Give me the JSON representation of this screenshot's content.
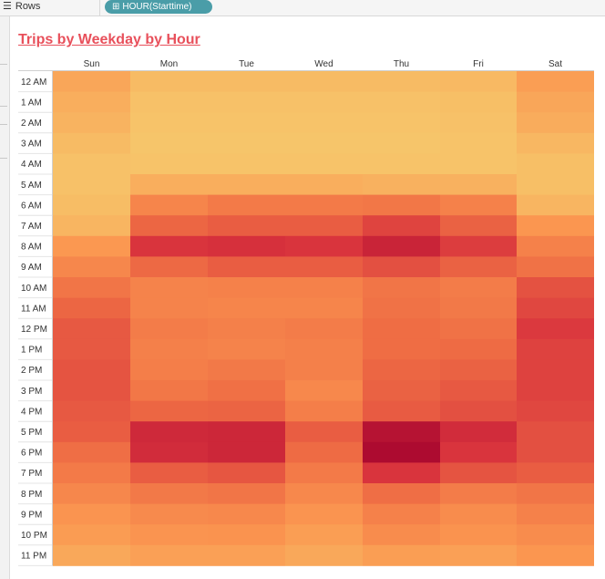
{
  "shelf": {
    "label": "Rows",
    "pill": "HOUR(Starttime)",
    "label_icon": "list-icon",
    "pill_icon": "plus-box-icon"
  },
  "chart_data": {
    "type": "heatmap",
    "title": "Trips by Weekday by Hour",
    "xlabel": "",
    "ylabel": "",
    "columns": [
      "Sun",
      "Mon",
      "Tue",
      "Wed",
      "Thu",
      "Fri",
      "Sat"
    ],
    "rows": [
      "12 AM",
      "1 AM",
      "2 AM",
      "3 AM",
      "4 AM",
      "5 AM",
      "6 AM",
      "7 AM",
      "8 AM",
      "9 AM",
      "10 AM",
      "11 AM",
      "12 PM",
      "1 PM",
      "2 PM",
      "3 PM",
      "4 PM",
      "5 PM",
      "6 PM",
      "7 PM",
      "8 PM",
      "9 PM",
      "10 PM",
      "11 PM"
    ],
    "values": [
      [
        0.17,
        0.07,
        0.07,
        0.07,
        0.07,
        0.08,
        0.21
      ],
      [
        0.13,
        0.04,
        0.04,
        0.04,
        0.04,
        0.05,
        0.17
      ],
      [
        0.11,
        0.03,
        0.03,
        0.03,
        0.03,
        0.04,
        0.14
      ],
      [
        0.07,
        0.02,
        0.02,
        0.02,
        0.02,
        0.03,
        0.09
      ],
      [
        0.04,
        0.03,
        0.03,
        0.03,
        0.03,
        0.03,
        0.05
      ],
      [
        0.04,
        0.13,
        0.13,
        0.13,
        0.12,
        0.12,
        0.05
      ],
      [
        0.06,
        0.35,
        0.41,
        0.41,
        0.43,
        0.37,
        0.1
      ],
      [
        0.1,
        0.52,
        0.56,
        0.56,
        0.67,
        0.54,
        0.25
      ],
      [
        0.24,
        0.74,
        0.76,
        0.74,
        0.84,
        0.7,
        0.37
      ],
      [
        0.34,
        0.51,
        0.56,
        0.56,
        0.62,
        0.54,
        0.46
      ],
      [
        0.44,
        0.36,
        0.37,
        0.37,
        0.44,
        0.4,
        0.61
      ],
      [
        0.52,
        0.36,
        0.35,
        0.35,
        0.46,
        0.42,
        0.66
      ],
      [
        0.58,
        0.4,
        0.38,
        0.4,
        0.49,
        0.46,
        0.72
      ],
      [
        0.58,
        0.38,
        0.36,
        0.38,
        0.49,
        0.5,
        0.68
      ],
      [
        0.6,
        0.39,
        0.42,
        0.38,
        0.52,
        0.54,
        0.68
      ],
      [
        0.6,
        0.43,
        0.47,
        0.33,
        0.54,
        0.58,
        0.68
      ],
      [
        0.58,
        0.52,
        0.53,
        0.39,
        0.57,
        0.62,
        0.66
      ],
      [
        0.56,
        0.81,
        0.82,
        0.56,
        0.95,
        0.79,
        0.62
      ],
      [
        0.48,
        0.79,
        0.82,
        0.5,
        1.0,
        0.74,
        0.62
      ],
      [
        0.41,
        0.56,
        0.59,
        0.41,
        0.74,
        0.6,
        0.56
      ],
      [
        0.34,
        0.42,
        0.44,
        0.33,
        0.48,
        0.4,
        0.44
      ],
      [
        0.26,
        0.32,
        0.33,
        0.26,
        0.37,
        0.31,
        0.37
      ],
      [
        0.22,
        0.26,
        0.27,
        0.21,
        0.31,
        0.27,
        0.31
      ],
      [
        0.16,
        0.2,
        0.2,
        0.16,
        0.21,
        0.2,
        0.25
      ]
    ],
    "color_scale": [
      "#f6c96c",
      "#fb9650",
      "#ee6b44",
      "#d8323d",
      "#ad0b30"
    ],
    "grid": false,
    "legend": "none"
  }
}
